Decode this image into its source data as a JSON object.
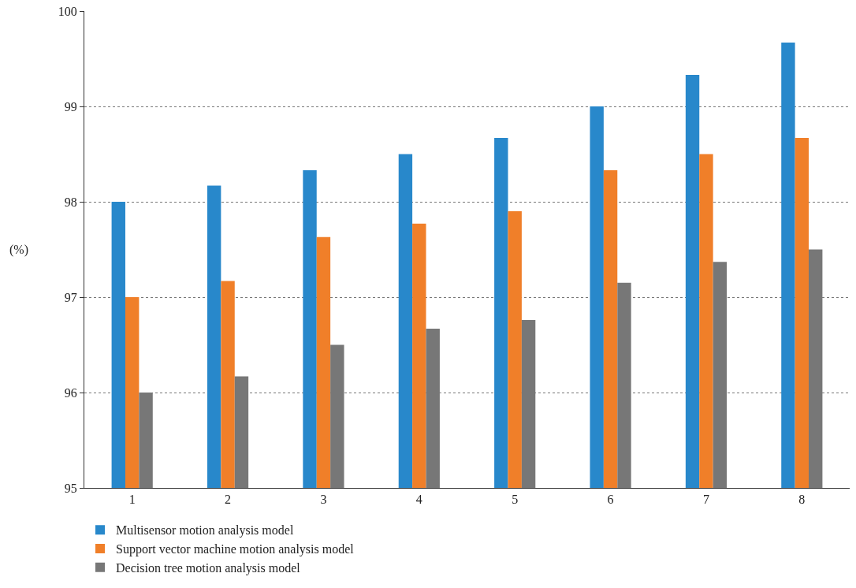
{
  "chart_data": {
    "type": "bar",
    "ylabel": "(%)",
    "categories": [
      "1",
      "2",
      "3",
      "4",
      "5",
      "6",
      "7",
      "8"
    ],
    "series": [
      {
        "name": "Multisensor motion analysis model",
        "color": "#2888cb",
        "values": [
          98,
          98.17,
          98.33,
          98.5,
          98.67,
          99,
          99.33,
          99.67
        ]
      },
      {
        "name": "Support vector machine motion analysis model",
        "color": "#f07f29",
        "values": [
          97,
          97.17,
          97.63,
          97.77,
          97.9,
          98.33,
          98.5,
          98.67
        ]
      },
      {
        "name": "Decision tree motion analysis model",
        "color": "#777777",
        "values": [
          96,
          96.17,
          96.5,
          96.67,
          96.76,
          97.15,
          97.37,
          97.5
        ]
      }
    ],
    "ylim": [
      95,
      100
    ],
    "yticks": [
      95,
      96,
      97,
      98,
      99,
      100
    ],
    "grid": "y",
    "legend": "bottom left"
  }
}
